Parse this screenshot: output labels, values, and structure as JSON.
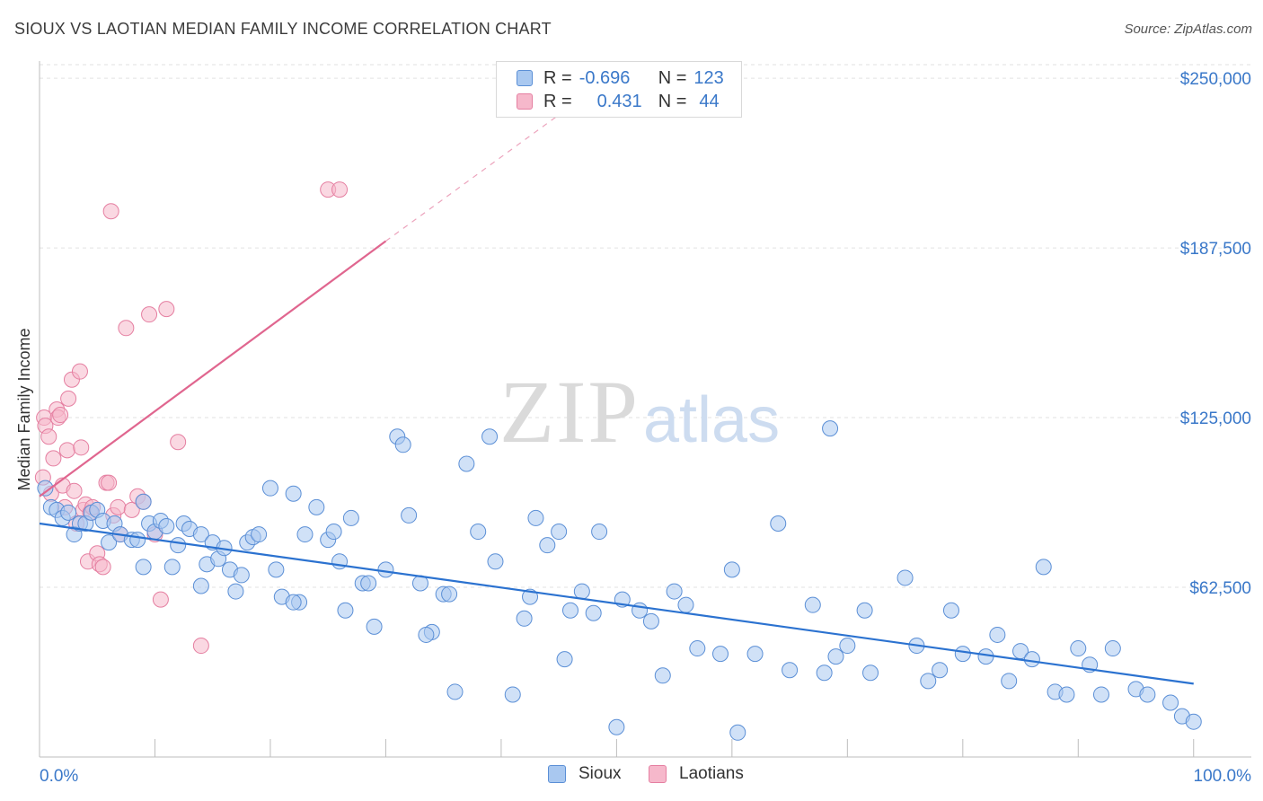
{
  "header": {
    "title": "SIOUX VS LAOTIAN MEDIAN FAMILY INCOME CORRELATION CHART",
    "source": "Source: ZipAtlas.com"
  },
  "colors": {
    "sioux_fill": "#a9c8f0",
    "sioux_stroke": "#5b8fd6",
    "sioux_line": "#2b72d0",
    "laotians_fill": "#f6b8cb",
    "laotians_stroke": "#e57fa1",
    "laotians_line": "#e0668f",
    "axis_label": "#3a78c9",
    "grid": "#e2e2e2"
  },
  "legend": {
    "rows": [
      {
        "r_label": "R =",
        "r_value": "-0.696",
        "n_label": "N =",
        "n_value": "123"
      },
      {
        "r_label": "R =",
        "r_value": "0.431",
        "n_label": "N =",
        "n_value": "44"
      }
    ]
  },
  "bottom_legend": [
    "Sioux",
    "Laotians"
  ],
  "watermark": {
    "zip": "ZIP",
    "atlas": "atlas"
  },
  "chart_data": {
    "type": "scatter",
    "title": "SIOUX VS LAOTIAN MEDIAN FAMILY INCOME CORRELATION CHART",
    "xlabel": "",
    "ylabel": "Median Family Income",
    "xlim": [
      0,
      105
    ],
    "ylim": [
      0,
      255000
    ],
    "x_tick_labels": [
      "0.0%",
      "100.0%"
    ],
    "y_ticks": [
      62500,
      125000,
      187500,
      250000
    ],
    "y_tick_labels": [
      "$62,500",
      "$125,000",
      "$187,500",
      "$250,000"
    ],
    "legend_position": "top-center",
    "series": [
      {
        "name": "Sioux",
        "r": -0.696,
        "n": 123,
        "trend": {
          "x0": 0,
          "y0": 86000,
          "x1": 100,
          "y1": 27000
        },
        "points": [
          [
            0.5,
            99000
          ],
          [
            1.0,
            92000
          ],
          [
            1.5,
            91000
          ],
          [
            2.0,
            88000
          ],
          [
            2.5,
            90000
          ],
          [
            3.0,
            82000
          ],
          [
            3.5,
            86000
          ],
          [
            4.0,
            86000
          ],
          [
            4.5,
            90000
          ],
          [
            5.0,
            91000
          ],
          [
            5.5,
            87000
          ],
          [
            6.0,
            79000
          ],
          [
            6.5,
            86000
          ],
          [
            7.0,
            82000
          ],
          [
            8.0,
            80000
          ],
          [
            8.5,
            80000
          ],
          [
            9.0,
            70000
          ],
          [
            9.5,
            86000
          ],
          [
            10.0,
            83000
          ],
          [
            10.5,
            87000
          ],
          [
            11.0,
            85000
          ],
          [
            11.5,
            70000
          ],
          [
            12.0,
            78000
          ],
          [
            12.5,
            86000
          ],
          [
            13.0,
            84000
          ],
          [
            14.0,
            82000
          ],
          [
            14.5,
            71000
          ],
          [
            15.0,
            79000
          ],
          [
            15.5,
            73000
          ],
          [
            16.0,
            77000
          ],
          [
            16.5,
            69000
          ],
          [
            17.0,
            61000
          ],
          [
            17.5,
            67000
          ],
          [
            18.0,
            79000
          ],
          [
            18.5,
            81000
          ],
          [
            19.0,
            82000
          ],
          [
            20.0,
            99000
          ],
          [
            20.5,
            69000
          ],
          [
            21.0,
            59000
          ],
          [
            22.0,
            97000
          ],
          [
            22.5,
            57000
          ],
          [
            23.0,
            82000
          ],
          [
            24.0,
            92000
          ],
          [
            25.0,
            80000
          ],
          [
            25.5,
            83000
          ],
          [
            26.0,
            72000
          ],
          [
            26.5,
            54000
          ],
          [
            27.0,
            88000
          ],
          [
            28.0,
            64000
          ],
          [
            28.5,
            64000
          ],
          [
            29.0,
            48000
          ],
          [
            30.0,
            69000
          ],
          [
            31.0,
            118000
          ],
          [
            31.5,
            115000
          ],
          [
            32.0,
            89000
          ],
          [
            33.0,
            64000
          ],
          [
            34.0,
            46000
          ],
          [
            35.0,
            60000
          ],
          [
            35.5,
            60000
          ],
          [
            36.0,
            24000
          ],
          [
            37.0,
            108000
          ],
          [
            38.0,
            83000
          ],
          [
            39.0,
            118000
          ],
          [
            39.5,
            72000
          ],
          [
            41.0,
            23000
          ],
          [
            42.0,
            51000
          ],
          [
            42.5,
            59000
          ],
          [
            43.0,
            88000
          ],
          [
            44.0,
            78000
          ],
          [
            45.0,
            83000
          ],
          [
            45.5,
            36000
          ],
          [
            46.0,
            54000
          ],
          [
            47.0,
            61000
          ],
          [
            48.0,
            53000
          ],
          [
            48.5,
            83000
          ],
          [
            50.0,
            11000
          ],
          [
            50.5,
            58000
          ],
          [
            52.0,
            54000
          ],
          [
            53.0,
            50000
          ],
          [
            54.0,
            30000
          ],
          [
            55.0,
            61000
          ],
          [
            56.0,
            56000
          ],
          [
            57.0,
            40000
          ],
          [
            59.0,
            38000
          ],
          [
            60.0,
            69000
          ],
          [
            62.0,
            38000
          ],
          [
            64.0,
            86000
          ],
          [
            65.0,
            32000
          ],
          [
            67.0,
            56000
          ],
          [
            68.0,
            31000
          ],
          [
            69.0,
            37000
          ],
          [
            70.0,
            41000
          ],
          [
            71.5,
            54000
          ],
          [
            72.0,
            31000
          ],
          [
            75.0,
            66000
          ],
          [
            76.0,
            41000
          ],
          [
            77.0,
            28000
          ],
          [
            78.0,
            32000
          ],
          [
            79.0,
            54000
          ],
          [
            80.0,
            38000
          ],
          [
            82.0,
            37000
          ],
          [
            83.0,
            45000
          ],
          [
            84.0,
            28000
          ],
          [
            85.0,
            39000
          ],
          [
            86.0,
            36000
          ],
          [
            87.0,
            70000
          ],
          [
            88.0,
            24000
          ],
          [
            89.0,
            23000
          ],
          [
            90.0,
            40000
          ],
          [
            91.0,
            34000
          ],
          [
            92.0,
            23000
          ],
          [
            93.0,
            40000
          ],
          [
            95.0,
            25000
          ],
          [
            96.0,
            23000
          ],
          [
            98.0,
            20000
          ],
          [
            99.0,
            15000
          ],
          [
            100.0,
            13000
          ],
          [
            9.0,
            94000
          ],
          [
            14.0,
            63000
          ],
          [
            22.0,
            57000
          ],
          [
            33.5,
            45000
          ],
          [
            60.5,
            9000
          ],
          [
            68.5,
            121000
          ]
        ]
      },
      {
        "name": "Laotians",
        "r": 0.431,
        "n": 44,
        "trend": {
          "x0": 0,
          "y0": 96000,
          "x1": 30,
          "y1": 190000
        },
        "trend_dashed_to": {
          "x": 50,
          "y": 252000
        },
        "points": [
          [
            0.3,
            103000
          ],
          [
            0.4,
            125000
          ],
          [
            0.5,
            122000
          ],
          [
            0.8,
            118000
          ],
          [
            1.0,
            97000
          ],
          [
            1.2,
            110000
          ],
          [
            1.5,
            128000
          ],
          [
            1.6,
            125000
          ],
          [
            1.8,
            126000
          ],
          [
            2.0,
            100000
          ],
          [
            2.2,
            92000
          ],
          [
            2.4,
            113000
          ],
          [
            2.5,
            132000
          ],
          [
            2.8,
            139000
          ],
          [
            3.0,
            98000
          ],
          [
            3.2,
            86000
          ],
          [
            3.5,
            142000
          ],
          [
            3.6,
            114000
          ],
          [
            3.8,
            91000
          ],
          [
            4.0,
            93000
          ],
          [
            4.2,
            72000
          ],
          [
            4.4,
            90000
          ],
          [
            4.6,
            92000
          ],
          [
            5.0,
            75000
          ],
          [
            5.2,
            71000
          ],
          [
            5.5,
            70000
          ],
          [
            5.8,
            101000
          ],
          [
            6.0,
            101000
          ],
          [
            6.2,
            201000
          ],
          [
            6.4,
            89000
          ],
          [
            6.8,
            92000
          ],
          [
            7.0,
            82000
          ],
          [
            7.5,
            158000
          ],
          [
            8.0,
            91000
          ],
          [
            8.5,
            96000
          ],
          [
            9.0,
            94000
          ],
          [
            9.5,
            163000
          ],
          [
            10.0,
            82000
          ],
          [
            10.5,
            58000
          ],
          [
            11.0,
            165000
          ],
          [
            12.0,
            116000
          ],
          [
            14.0,
            41000
          ],
          [
            25.0,
            209000
          ],
          [
            26.0,
            209000
          ]
        ]
      }
    ]
  }
}
